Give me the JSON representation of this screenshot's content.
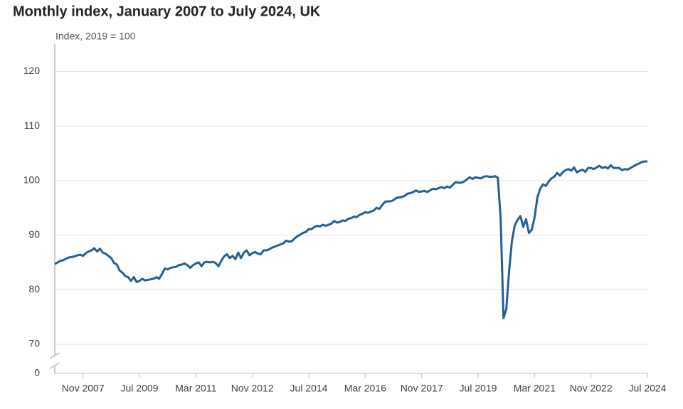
{
  "chart_data": {
    "type": "line",
    "title": "Monthly index, January 2007 to July 2024, UK",
    "y_label": "Index, 2019 = 100",
    "categories": [
      null,
      null,
      null,
      null,
      null,
      null,
      null,
      null,
      null,
      null,
      "Nov 2007",
      null,
      null,
      null,
      null,
      null,
      null,
      null,
      null,
      null,
      null,
      null,
      null,
      null,
      null,
      null,
      null,
      null,
      null,
      null,
      "Jul 2009",
      null,
      null,
      null,
      null,
      null,
      null,
      null,
      null,
      null,
      null,
      null,
      null,
      null,
      null,
      null,
      null,
      null,
      null,
      null,
      "Mar 2011",
      null,
      null,
      null,
      null,
      null,
      null,
      null,
      null,
      null,
      null,
      null,
      null,
      null,
      null,
      null,
      null,
      null,
      null,
      null,
      "Nov 2012",
      null,
      null,
      null,
      null,
      null,
      null,
      null,
      null,
      null,
      null,
      null,
      null,
      null,
      null,
      null,
      null,
      null,
      null,
      null,
      "Jul 2014",
      null,
      null,
      null,
      null,
      null,
      null,
      null,
      null,
      null,
      null,
      null,
      null,
      null,
      null,
      null,
      null,
      null,
      null,
      null,
      "Mar 2016",
      null,
      null,
      null,
      null,
      null,
      null,
      null,
      null,
      null,
      null,
      null,
      null,
      null,
      null,
      null,
      null,
      null,
      null,
      null,
      "Nov 2017",
      null,
      null,
      null,
      null,
      null,
      null,
      null,
      null,
      null,
      null,
      null,
      null,
      null,
      null,
      null,
      null,
      null,
      null,
      null,
      "Jul 2019",
      null,
      null,
      null,
      null,
      null,
      null,
      null,
      null,
      null,
      null,
      null,
      null,
      null,
      null,
      null,
      null,
      null,
      null,
      null,
      "Mar 2021",
      null,
      null,
      null,
      null,
      null,
      null,
      null,
      null,
      null,
      null,
      null,
      null,
      null,
      null,
      null,
      null,
      null,
      null,
      null,
      "Nov 2022",
      null,
      null,
      null,
      null,
      null,
      null,
      null,
      null,
      null,
      null,
      null,
      null,
      null,
      null,
      null,
      null,
      null,
      null,
      null,
      "Jul 2024"
    ],
    "series": [
      {
        "name": "Index",
        "color": "#206095",
        "values": [
          84.7,
          85.0,
          85.3,
          85.4,
          85.7,
          85.9,
          86.0,
          86.1,
          86.3,
          86.4,
          86.2,
          86.7,
          87.0,
          87.2,
          87.6,
          87.0,
          87.5,
          86.8,
          86.6,
          86.2,
          85.8,
          84.9,
          84.6,
          83.5,
          83.1,
          82.5,
          82.3,
          81.6,
          82.3,
          81.4,
          81.6,
          82.0,
          81.7,
          81.8,
          81.9,
          82.0,
          82.3,
          82.0,
          82.9,
          83.9,
          83.7,
          84.0,
          84.1,
          84.2,
          84.5,
          84.6,
          84.8,
          84.5,
          84.0,
          84.5,
          84.8,
          85.0,
          84.3,
          85.0,
          85.1,
          85.0,
          85.1,
          84.9,
          84.3,
          85.3,
          86.1,
          86.5,
          85.8,
          86.2,
          85.6,
          86.8,
          85.8,
          86.8,
          87.2,
          86.3,
          86.7,
          86.9,
          86.6,
          86.5,
          87.2,
          87.2,
          87.4,
          87.7,
          87.9,
          88.1,
          88.3,
          88.5,
          89.0,
          88.8,
          88.9,
          89.4,
          89.8,
          90.1,
          90.4,
          90.6,
          91.1,
          91.1,
          91.5,
          91.7,
          91.6,
          91.9,
          91.7,
          91.9,
          92.1,
          92.6,
          92.3,
          92.4,
          92.7,
          92.6,
          93.0,
          93.1,
          93.4,
          93.3,
          93.7,
          93.9,
          94.2,
          94.1,
          94.3,
          94.5,
          95.0,
          94.8,
          95.5,
          96.1,
          96.2,
          96.2,
          96.4,
          96.8,
          96.9,
          97.0,
          97.2,
          97.6,
          97.7,
          97.9,
          98.2,
          97.9,
          98.0,
          98.1,
          97.9,
          98.2,
          98.5,
          98.4,
          98.6,
          98.8,
          98.6,
          98.9,
          98.7,
          99.2,
          99.7,
          99.6,
          99.6,
          99.8,
          100.2,
          100.6,
          100.3,
          100.6,
          100.5,
          100.4,
          100.7,
          100.8,
          100.7,
          100.7,
          100.8,
          100.5,
          93.0,
          74.8,
          76.5,
          83.5,
          89.0,
          91.8,
          92.8,
          93.5,
          91.5,
          92.9,
          90.4,
          91.0,
          93.2,
          96.9,
          98.5,
          99.3,
          99.0,
          99.8,
          100.4,
          100.7,
          101.4,
          100.9,
          101.5,
          101.9,
          102.1,
          101.8,
          102.4,
          101.5,
          101.8,
          102.0,
          101.6,
          102.3,
          102.3,
          102.1,
          102.4,
          102.7,
          102.3,
          102.5,
          102.2,
          102.8,
          102.3,
          102.3,
          102.3,
          101.9,
          102.1,
          102.0,
          102.3,
          102.6,
          102.9,
          103.1,
          103.4,
          103.5,
          103.5
        ]
      }
    ],
    "ylim": [
      0,
      125
    ],
    "axis_break": [
      0,
      70
    ],
    "yticks": [
      0,
      70,
      80,
      90,
      100,
      110,
      120
    ],
    "grid": true
  }
}
